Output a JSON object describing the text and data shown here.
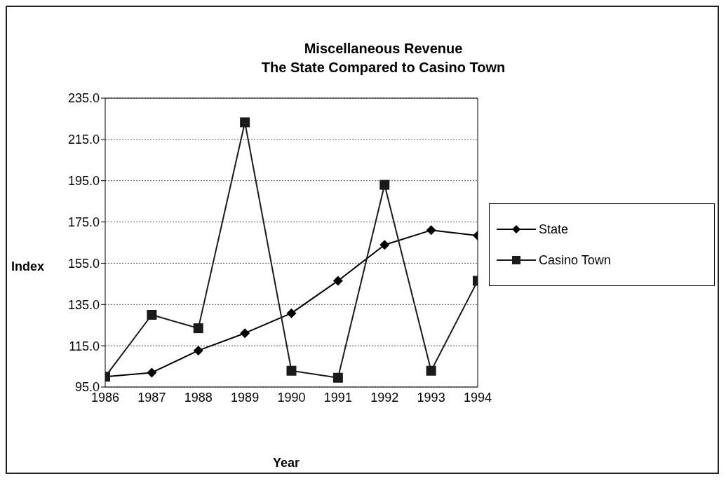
{
  "chart_data": {
    "type": "line",
    "title": "Miscellaneous Revenue\nThe State Compared to Casino Town",
    "xlabel": "Year",
    "ylabel": "Index",
    "categories": [
      "1986",
      "1987",
      "1988",
      "1989",
      "1990",
      "1991",
      "1992",
      "1993",
      "1994"
    ],
    "series": [
      {
        "name": "State",
        "color": "#000000",
        "marker": "diamond",
        "values": [
          100,
          102,
          112.7,
          121.1,
          130.8,
          146.5,
          163.9,
          171,
          168.4
        ]
      },
      {
        "name": "Casino Town",
        "color": "#1a1a1a",
        "marker": "square",
        "values": [
          100,
          130,
          123.5,
          223.3,
          102.9,
          99.5,
          193,
          102.9,
          146.5
        ]
      }
    ],
    "ylim": [
      95,
      235
    ],
    "yticks": [
      {
        "value": 95,
        "label": "95.0"
      },
      {
        "value": 115,
        "label": "115.0"
      },
      {
        "value": 135,
        "label": "135.0"
      },
      {
        "value": 155,
        "label": "155.0"
      },
      {
        "value": 175,
        "label": "175.0"
      },
      {
        "value": 195,
        "label": "195.0"
      },
      {
        "value": 215,
        "label": "215.0"
      },
      {
        "value": 235,
        "label": "235.0"
      }
    ],
    "grid": "y",
    "legend": "right",
    "line_style": "solid"
  }
}
